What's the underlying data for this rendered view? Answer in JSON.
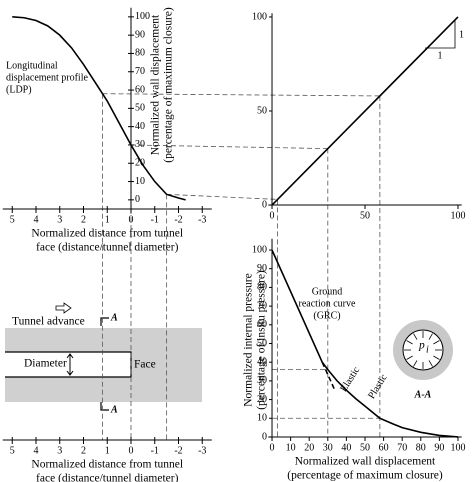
{
  "chart_data": [
    {
      "type": "line",
      "annotation": [
        "Longitudinal",
        "displacement profile",
        "(LDP)"
      ],
      "x_label": [
        "Normalized distance from tunnel",
        "face (distance/tunnel diameter)"
      ],
      "y_label": [
        "Normalized wall displacement",
        "(percentage of maximum closure)"
      ],
      "x": [
        5,
        4.5,
        4,
        3.5,
        3,
        2.5,
        2,
        1.5,
        1.2,
        1,
        0.5,
        0,
        -0.5,
        -1,
        -1.5,
        -2,
        -2.3
      ],
      "values": [
        100,
        99.5,
        98,
        95,
        90,
        83,
        74,
        64,
        58,
        54,
        42,
        30,
        19,
        10,
        3,
        1,
        0
      ],
      "color": "#000000",
      "xlim": [
        5.4,
        -3.4
      ],
      "xticks": [
        5,
        4,
        3,
        2,
        1,
        0,
        -1,
        -2,
        -3
      ],
      "ylim": [
        -5,
        105
      ],
      "yticks": [
        0,
        10,
        20,
        30,
        40,
        50,
        60,
        70,
        80,
        90,
        100
      ],
      "guides": [
        {
          "x": 1.2,
          "y": 58
        },
        {
          "x": 0,
          "y": 30
        },
        {
          "x": -1.5,
          "y": 3
        }
      ]
    },
    {
      "type": "line",
      "x": [
        0,
        100
      ],
      "values": [
        0,
        100
      ],
      "color": "#000000",
      "slope_labels": [
        "1",
        "1"
      ],
      "xlim": [
        -2,
        102
      ],
      "xticks": [
        0,
        50,
        100
      ],
      "ylim": [
        -2,
        102
      ],
      "yticks": [
        0,
        50,
        100
      ]
    },
    {
      "type": "line",
      "annotation": [
        "Ground",
        "reaction curve",
        "(GRC)"
      ],
      "x_label": [
        "Normalized wall displacement",
        "(percentage of maximum closure)"
      ],
      "y_label": [
        "Normalized internal pressure",
        "(percentage of insitu pressure)"
      ],
      "series": [
        {
          "name": "Plastic",
          "color": "#000000",
          "dash": false,
          "x": [
            0,
            27,
            30,
            35,
            40,
            45,
            50,
            58,
            65,
            70,
            80,
            90,
            100
          ],
          "values": [
            100,
            40,
            36,
            30,
            25,
            20.5,
            16.5,
            10,
            7,
            5,
            2.5,
            0.8,
            0
          ]
        },
        {
          "name": "Elastic",
          "color": "#000000",
          "dash": true,
          "x": [
            27,
            34
          ],
          "values": [
            40,
            24.5
          ]
        }
      ],
      "section": {
        "pressure": "p",
        "pressure_sub": "i",
        "name": "A-A"
      },
      "xlim": [
        -2,
        102
      ],
      "xticks": [
        0,
        10,
        20,
        30,
        40,
        50,
        60,
        70,
        80,
        90,
        100
      ],
      "ylim": [
        -2,
        106
      ],
      "yticks": [
        0,
        10,
        20,
        30,
        40,
        50,
        60,
        70,
        80,
        90,
        100
      ],
      "guides": [
        {
          "x": 30,
          "y": 36
        },
        {
          "x": 58,
          "y": 10
        }
      ]
    },
    {
      "type": "schematic",
      "labels": {
        "advance": "Tunnel advance",
        "section_top": "A",
        "section_bottom": "A",
        "diameter": "Diameter",
        "face": "Face"
      },
      "x_label": [
        "Normalized distance from tunnel",
        "face (distance/tunnel diameter)"
      ],
      "xlim": [
        5.4,
        -3.4
      ],
      "xticks": [
        5,
        4,
        3,
        2,
        1,
        0,
        -1,
        -2,
        -3
      ]
    }
  ]
}
